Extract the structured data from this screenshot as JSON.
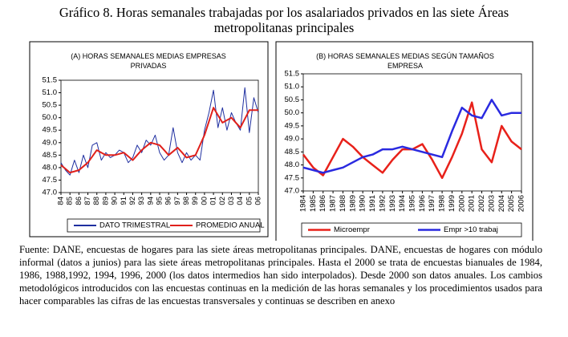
{
  "header": {
    "title": "Gráfico 8. Horas semanales trabajadas por los asalariados privados en las siete Áreas metropolitanas principales"
  },
  "chart_data": [
    {
      "type": "line",
      "title": "(A) HORAS SEMANALES MEDIAS EMPRESAS PRIVADAS",
      "categories": [
        "84",
        null,
        "85",
        null,
        "86",
        null,
        "87",
        null,
        "88",
        null,
        "89",
        null,
        "90",
        null,
        "91",
        null,
        "92",
        null,
        "93",
        null,
        "94",
        null,
        "95",
        null,
        "96",
        null,
        "97",
        null,
        "98",
        null,
        "99",
        null,
        "00",
        null,
        "01",
        null,
        "02",
        null,
        "03",
        null,
        "04",
        null,
        "05",
        null,
        "06"
      ],
      "series": [
        {
          "name": "DATO TRIMESTRAL",
          "color": "#1f2fa0",
          "width": 1,
          "values": [
            48.2,
            47.9,
            47.7,
            48.3,
            47.8,
            48.5,
            48.0,
            48.9,
            49.0,
            48.3,
            48.6,
            48.4,
            48.5,
            48.7,
            48.6,
            48.2,
            48.4,
            48.9,
            48.6,
            49.1,
            48.9,
            49.3,
            48.6,
            48.3,
            48.5,
            49.6,
            48.6,
            48.2,
            48.6,
            48.3,
            48.5,
            48.3,
            49.5,
            50.2,
            51.1,
            49.6,
            50.4,
            49.5,
            50.2,
            49.8,
            49.5,
            51.2,
            49.4,
            50.8,
            50.2
          ]
        },
        {
          "name": "PROMEDIO ANUAL",
          "color": "#e0201b",
          "width": 2,
          "values": [
            48.1,
            47.95,
            47.8,
            47.85,
            47.9,
            48.05,
            48.2,
            48.45,
            48.7,
            48.6,
            48.5,
            48.5,
            48.5,
            48.55,
            48.6,
            48.45,
            48.3,
            48.5,
            48.7,
            48.85,
            49.0,
            48.95,
            48.9,
            48.7,
            48.5,
            48.65,
            48.8,
            48.6,
            48.4,
            48.45,
            48.5,
            48.9,
            49.3,
            49.85,
            50.4,
            50.1,
            49.8,
            49.9,
            50.0,
            49.8,
            49.6,
            49.95,
            50.3,
            50.3,
            50.3
          ]
        }
      ],
      "ylim": [
        47,
        51.5
      ],
      "yticks": [
        {
          "value": 47,
          "label": "47.0"
        },
        47.5,
        {
          "value": 48,
          "label": "48.0"
        },
        48.5,
        {
          "value": 49,
          "label": "49.0"
        },
        49.5,
        {
          "value": 50,
          "label": "50.0"
        },
        50.5,
        {
          "value": 51,
          "label": "51.0"
        },
        51.5
      ]
    },
    {
      "type": "line",
      "title": "(B) HORAS SEMANALES MEDIAS SEGÚN TAMAÑOS EMPRESA",
      "categories": [
        "1984",
        "1985",
        "1986",
        "1987",
        "1988",
        "1989",
        "1990",
        "1991",
        "1992",
        "1993",
        "1994",
        "1995",
        "1996",
        "1997",
        "1998",
        "1999",
        "2000",
        "2001",
        "2002",
        "2003",
        "2004",
        "2005",
        "2006"
      ],
      "series": [
        {
          "name": "Microempr",
          "color": "#e8211a",
          "width": 2.5,
          "values": [
            48.4,
            47.9,
            47.6,
            48.3,
            49.0,
            48.7,
            48.3,
            48.0,
            47.7,
            48.2,
            48.6,
            48.6,
            48.8,
            48.2,
            47.5,
            48.3,
            49.2,
            50.4,
            48.6,
            48.1,
            49.5,
            48.9,
            48.6
          ]
        },
        {
          "name": "Empr >10 trabaj",
          "color": "#2a2ae0",
          "width": 2.5,
          "values": [
            47.9,
            47.8,
            47.7,
            47.8,
            47.9,
            48.1,
            48.3,
            48.4,
            48.6,
            48.6,
            48.7,
            48.6,
            48.5,
            48.4,
            48.3,
            49.3,
            50.2,
            49.9,
            49.8,
            50.5,
            49.9,
            50.0,
            50.0
          ]
        }
      ],
      "ylim": [
        47,
        51.5
      ],
      "yticks": [
        {
          "value": 47,
          "label": "47.0"
        },
        47.5,
        {
          "value": 48,
          "label": "48.0"
        },
        48.5,
        {
          "value": 49,
          "label": "49.0"
        },
        49.5,
        {
          "value": 50,
          "label": "50.0"
        },
        50.5,
        {
          "value": 51,
          "label": "51.0"
        },
        51.5
      ]
    }
  ],
  "footer": {
    "source": "Fuente: DANE, encuestas de hogares para las siete áreas metropolitanas principales. DANE, encuestas de hogares con módulo informal (datos a junios) para las siete áreas metropolitanas principales. Hasta el 2000 se trata de encuestas bianuales de 1984, 1986, 1988,1992, 1994, 1996, 2000 (los datos intermedios han sido interpolados). Desde 2000 son datos anuales. Los cambios metodológicos introducidos con las encuestas continuas en la medición de las horas semanales y los procedimientos usados para hacer comparables las cifras de las encuestas transversales y continuas se describen en anexo"
  }
}
